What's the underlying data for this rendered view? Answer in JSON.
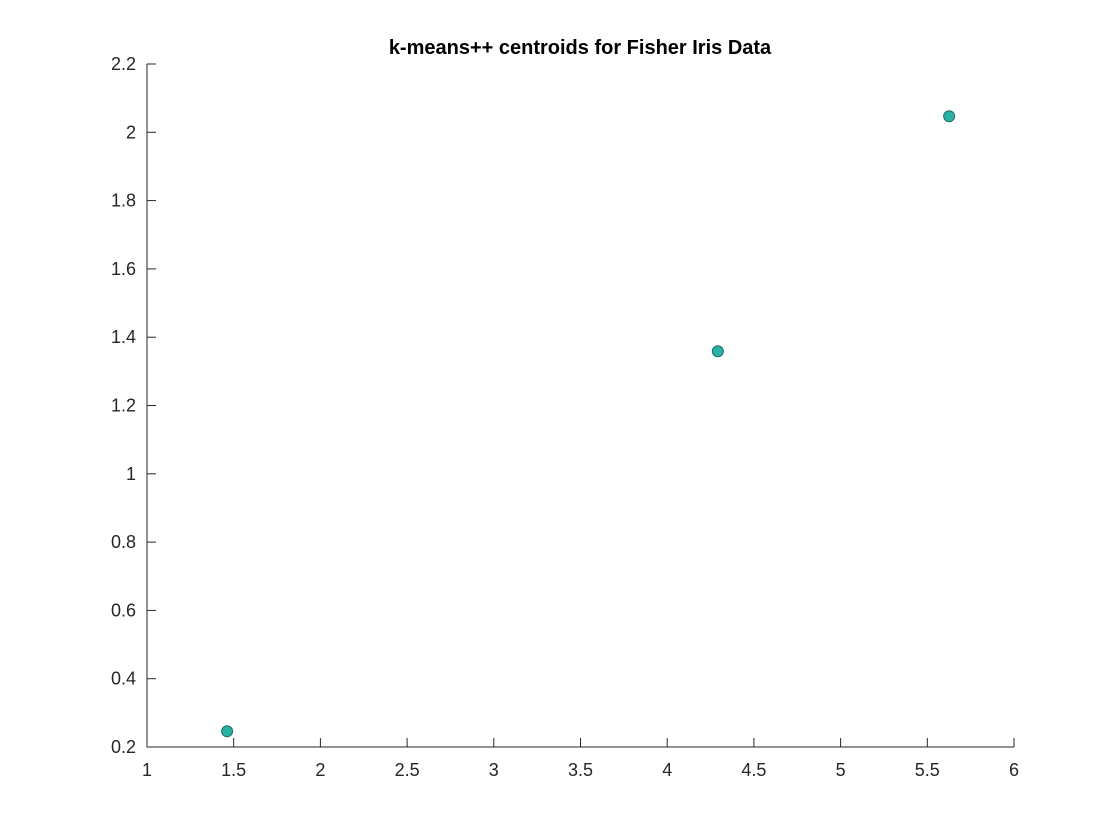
{
  "chart_data": {
    "type": "scatter",
    "title": "k-means++ centroids for Fisher Iris Data",
    "xlabel": "",
    "ylabel": "",
    "xlim": [
      1,
      6
    ],
    "ylim": [
      0.2,
      2.2
    ],
    "xticks": [
      1,
      1.5,
      2,
      2.5,
      3,
      3.5,
      4,
      4.5,
      5,
      5.5,
      6
    ],
    "yticks": [
      0.2,
      0.4,
      0.6,
      0.8,
      1,
      1.2,
      1.4,
      1.6,
      1.8,
      2,
      2.2
    ],
    "xtick_labels": [
      "1",
      "1.5",
      "2",
      "2.5",
      "3",
      "3.5",
      "4",
      "4.5",
      "5",
      "5.5",
      "6"
    ],
    "ytick_labels": [
      "0.2",
      "0.4",
      "0.6",
      "0.8",
      "1",
      "1.2",
      "1.4",
      "1.6",
      "1.8",
      "2",
      "2.2"
    ],
    "grid": false,
    "box": false,
    "marker_color": "#2ab0a4",
    "marker_edge_color": "#1d6f66",
    "series": [
      {
        "x": [
          1.462,
          4.292,
          5.626
        ],
        "y": [
          0.246,
          1.359,
          2.047
        ]
      }
    ]
  }
}
